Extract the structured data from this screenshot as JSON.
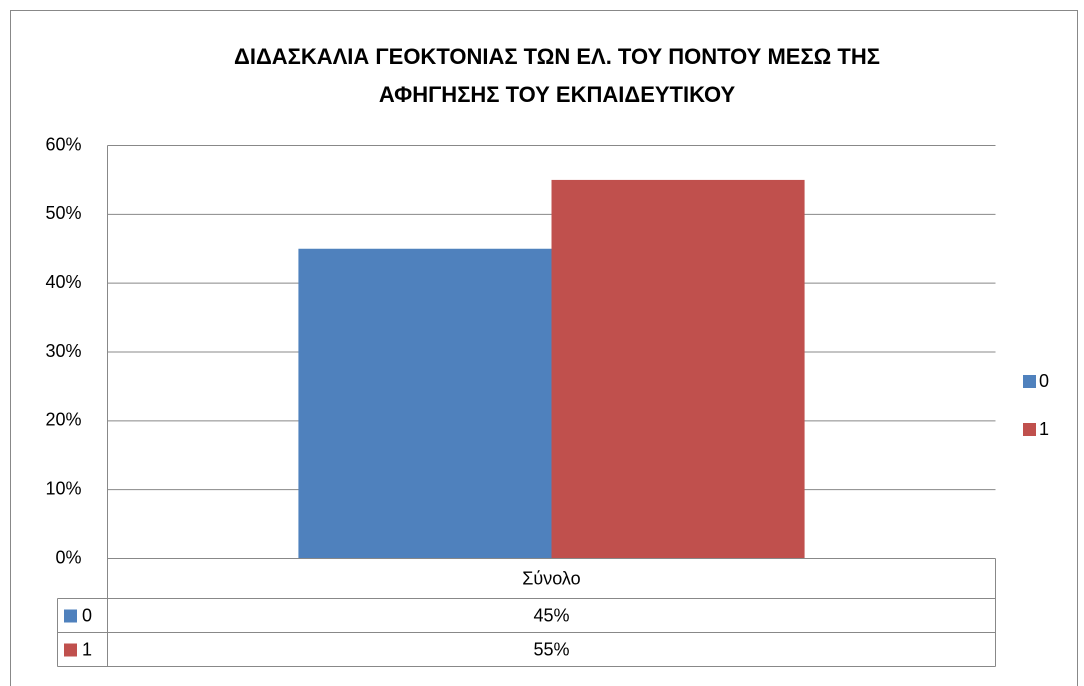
{
  "chart_data": {
    "type": "bar",
    "title": [
      "ΔΙΔΑΣΚΑΛΙΑ ΓΕΟΚΤΟΝΙΑΣ ΤΩΝ ΕΛ. ΤΟΥ ΠΟΝΤΟΥ ΜΕΣΩ ΤΗΣ",
      "ΑΦΗΓΗΣΗΣ ΤΟΥ ΕΚΠΑΙΔΕΥΤΙΚΟΥ"
    ],
    "categories": [
      "Σύνολο"
    ],
    "series": [
      {
        "name": "0",
        "color": "#4f81bd",
        "values": [
          45
        ],
        "value_labels": [
          "45%"
        ]
      },
      {
        "name": "1",
        "color": "#c0504d",
        "values": [
          55
        ],
        "value_labels": [
          "55%"
        ]
      }
    ],
    "ylim": [
      0,
      60
    ],
    "yticks": [
      {
        "value": 0,
        "label": "0%"
      },
      {
        "value": 10,
        "label": "10%"
      },
      {
        "value": 20,
        "label": "20%"
      },
      {
        "value": 30,
        "label": "30%"
      },
      {
        "value": 40,
        "label": "40%"
      },
      {
        "value": 50,
        "label": "50%"
      },
      {
        "value": 60,
        "label": "60%"
      }
    ],
    "grid": true,
    "legend": "right",
    "data_table": true
  }
}
